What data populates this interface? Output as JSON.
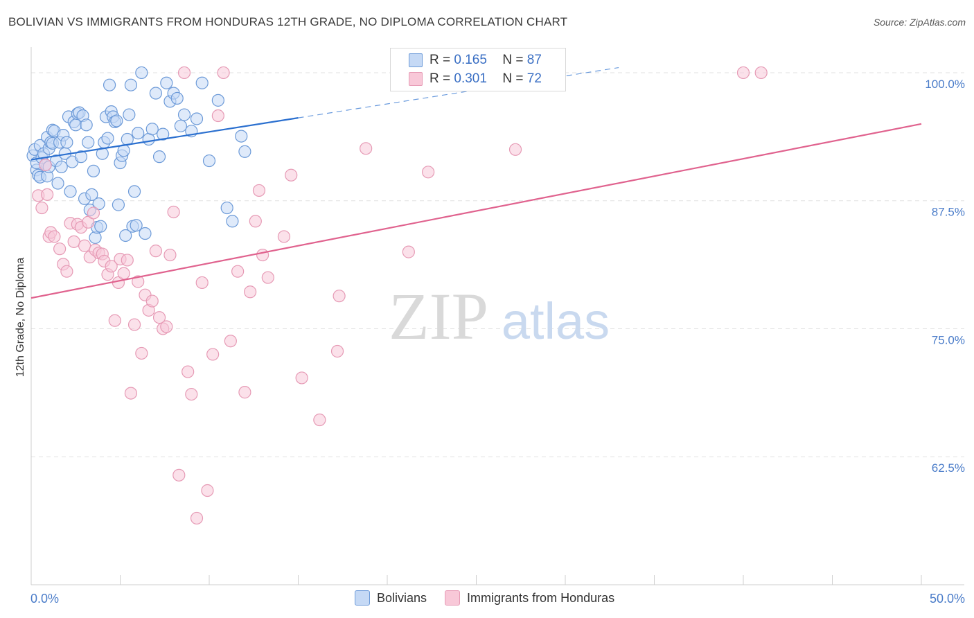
{
  "header": {
    "title": "BOLIVIAN VS IMMIGRANTS FROM HONDURAS 12TH GRADE, NO DIPLOMA CORRELATION CHART",
    "source": "Source: ZipAtlas.com"
  },
  "colors": {
    "blue": "#2a6fcf",
    "blue_fill": "#c5d9f5",
    "pink": "#e0628e",
    "pink_fill": "#f8c8d8",
    "axis_label": "#4a7cc9",
    "grid": "#e2e2e2"
  },
  "legend": {
    "r_label": "R =",
    "n_label": "N =",
    "bolivians": {
      "r": "0.165",
      "n": "87"
    },
    "honduras": {
      "r": "0.301",
      "n": "72"
    }
  },
  "bottom_legend": {
    "bolivians": "Bolivians",
    "honduras": "Immigrants from Honduras"
  },
  "watermark": {
    "zip": "ZIP",
    "atlas": "atlas"
  },
  "chart_data": {
    "type": "scatter",
    "title": "BOLIVIAN VS IMMIGRANTS FROM HONDURAS 12TH GRADE, NO DIPLOMA CORRELATION CHART",
    "xlabel": "",
    "ylabel": "12th Grade, No Diploma",
    "xlim": [
      0,
      50
    ],
    "ylim": [
      50,
      102.5
    ],
    "x_tick_labels": [
      {
        "value": 0,
        "label": "0.0%"
      },
      {
        "value": 50,
        "label": "50.0%"
      }
    ],
    "y_tick_labels": [
      {
        "value": 100,
        "label": "100.0%"
      },
      {
        "value": 87.5,
        "label": "87.5%"
      },
      {
        "value": 75,
        "label": "75.0%"
      },
      {
        "value": 62.5,
        "label": "62.5%"
      }
    ],
    "series": [
      {
        "name": "Bolivians",
        "r": 0.165,
        "n": 87,
        "trend": {
          "x0": 0,
          "y0": 91.5,
          "x_solid_end": 15,
          "x1": 33,
          "y1": 100.5
        },
        "points": [
          [
            0.1,
            91.9
          ],
          [
            0.2,
            92.5
          ],
          [
            0.3,
            90.5
          ],
          [
            0.3,
            91.2
          ],
          [
            0.4,
            90.0
          ],
          [
            0.5,
            89.8
          ],
          [
            0.5,
            92.9
          ],
          [
            0.6,
            91.7
          ],
          [
            0.7,
            92.1
          ],
          [
            0.8,
            91.0
          ],
          [
            0.9,
            93.7
          ],
          [
            0.9,
            89.9
          ],
          [
            1.0,
            90.8
          ],
          [
            1.0,
            92.6
          ],
          [
            1.1,
            93.2
          ],
          [
            1.2,
            94.4
          ],
          [
            1.2,
            93.1
          ],
          [
            1.3,
            94.3
          ],
          [
            1.4,
            91.4
          ],
          [
            1.5,
            89.2
          ],
          [
            1.6,
            93.2
          ],
          [
            1.7,
            90.8
          ],
          [
            1.8,
            93.9
          ],
          [
            1.9,
            92.1
          ],
          [
            2.0,
            93.2
          ],
          [
            2.1,
            95.7
          ],
          [
            2.2,
            88.4
          ],
          [
            2.3,
            91.3
          ],
          [
            2.4,
            95.2
          ],
          [
            2.5,
            94.9
          ],
          [
            2.6,
            96.0
          ],
          [
            2.7,
            96.1
          ],
          [
            2.8,
            91.8
          ],
          [
            2.9,
            95.8
          ],
          [
            3.0,
            87.7
          ],
          [
            3.1,
            94.9
          ],
          [
            3.2,
            93.2
          ],
          [
            3.3,
            86.6
          ],
          [
            3.4,
            88.1
          ],
          [
            3.5,
            90.4
          ],
          [
            3.6,
            83.9
          ],
          [
            3.7,
            84.9
          ],
          [
            3.8,
            87.2
          ],
          [
            3.9,
            85.0
          ],
          [
            4.0,
            92.1
          ],
          [
            4.1,
            93.2
          ],
          [
            4.2,
            95.7
          ],
          [
            4.3,
            93.6
          ],
          [
            4.4,
            98.8
          ],
          [
            4.5,
            96.2
          ],
          [
            4.6,
            95.7
          ],
          [
            4.7,
            95.2
          ],
          [
            4.8,
            95.3
          ],
          [
            4.9,
            87.1
          ],
          [
            5.0,
            91.2
          ],
          [
            5.1,
            91.9
          ],
          [
            5.2,
            92.4
          ],
          [
            5.3,
            84.1
          ],
          [
            5.4,
            93.5
          ],
          [
            5.5,
            95.9
          ],
          [
            5.6,
            98.8
          ],
          [
            5.7,
            85.0
          ],
          [
            5.8,
            88.4
          ],
          [
            5.9,
            85.1
          ],
          [
            6.0,
            94.1
          ],
          [
            6.2,
            100.0
          ],
          [
            6.4,
            84.3
          ],
          [
            6.6,
            93.5
          ],
          [
            6.8,
            94.5
          ],
          [
            7.0,
            98.0
          ],
          [
            7.2,
            91.8
          ],
          [
            7.4,
            94.0
          ],
          [
            7.6,
            99.0
          ],
          [
            7.8,
            97.2
          ],
          [
            8.0,
            98.0
          ],
          [
            8.2,
            97.5
          ],
          [
            8.4,
            94.8
          ],
          [
            8.6,
            95.9
          ],
          [
            9.0,
            94.3
          ],
          [
            9.3,
            95.5
          ],
          [
            9.6,
            99.0
          ],
          [
            10.0,
            91.4
          ],
          [
            10.5,
            97.3
          ],
          [
            11.0,
            86.8
          ],
          [
            11.3,
            85.5
          ],
          [
            11.8,
            93.8
          ],
          [
            12.0,
            92.3
          ]
        ]
      },
      {
        "name": "Immigrants from Honduras",
        "r": 0.301,
        "n": 72,
        "trend": {
          "x0": 0,
          "y0": 78.0,
          "x1": 50,
          "y1": 95.0
        },
        "points": [
          [
            0.4,
            88.0
          ],
          [
            0.6,
            86.8
          ],
          [
            0.8,
            91.0
          ],
          [
            0.9,
            88.1
          ],
          [
            1.0,
            84.0
          ],
          [
            1.1,
            84.4
          ],
          [
            1.3,
            84.0
          ],
          [
            1.6,
            82.8
          ],
          [
            1.8,
            81.3
          ],
          [
            2.0,
            80.6
          ],
          [
            2.2,
            85.3
          ],
          [
            2.4,
            83.5
          ],
          [
            2.6,
            85.2
          ],
          [
            2.8,
            84.9
          ],
          [
            3.0,
            83.1
          ],
          [
            3.2,
            85.4
          ],
          [
            3.3,
            82.0
          ],
          [
            3.5,
            86.3
          ],
          [
            3.6,
            82.7
          ],
          [
            3.8,
            82.4
          ],
          [
            4.0,
            82.3
          ],
          [
            4.1,
            81.6
          ],
          [
            4.3,
            80.3
          ],
          [
            4.5,
            81.1
          ],
          [
            4.7,
            75.8
          ],
          [
            4.9,
            79.5
          ],
          [
            5.0,
            81.8
          ],
          [
            5.2,
            80.4
          ],
          [
            5.4,
            81.7
          ],
          [
            5.6,
            68.7
          ],
          [
            5.8,
            75.4
          ],
          [
            6.0,
            79.6
          ],
          [
            6.2,
            72.6
          ],
          [
            6.4,
            78.3
          ],
          [
            6.6,
            76.8
          ],
          [
            6.8,
            77.7
          ],
          [
            7.0,
            82.6
          ],
          [
            7.2,
            76.1
          ],
          [
            7.4,
            75.0
          ],
          [
            7.6,
            75.2
          ],
          [
            7.8,
            82.2
          ],
          [
            8.0,
            86.4
          ],
          [
            8.3,
            60.7
          ],
          [
            8.6,
            100.0
          ],
          [
            8.8,
            70.8
          ],
          [
            9.0,
            68.6
          ],
          [
            9.3,
            56.5
          ],
          [
            9.6,
            79.5
          ],
          [
            9.9,
            59.2
          ],
          [
            10.2,
            72.5
          ],
          [
            10.5,
            95.8
          ],
          [
            10.8,
            100.0
          ],
          [
            11.2,
            73.8
          ],
          [
            11.6,
            80.6
          ],
          [
            12.0,
            68.8
          ],
          [
            12.3,
            78.6
          ],
          [
            12.6,
            85.5
          ],
          [
            12.8,
            88.5
          ],
          [
            13.0,
            82.2
          ],
          [
            13.3,
            80.0
          ],
          [
            14.2,
            84.0
          ],
          [
            14.6,
            90.0
          ],
          [
            15.2,
            70.2
          ],
          [
            16.2,
            66.1
          ],
          [
            17.2,
            72.8
          ],
          [
            17.3,
            78.2
          ],
          [
            18.8,
            92.6
          ],
          [
            21.2,
            82.5
          ],
          [
            22.3,
            90.3
          ],
          [
            27.2,
            92.5
          ],
          [
            40.0,
            100.0
          ],
          [
            41.0,
            100.0
          ]
        ]
      }
    ]
  }
}
